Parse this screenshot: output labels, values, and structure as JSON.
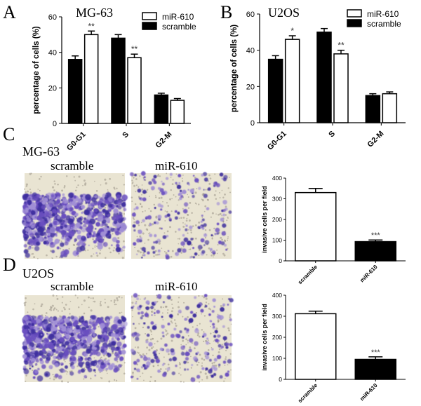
{
  "colors": {
    "filled": "#000000",
    "open": "#ffffff",
    "micro_bg": "#e9e4d2",
    "stain_dark": "#3d2d9e",
    "stain_mid": "#6a4fc0",
    "stain_light": "#a18fd6"
  },
  "panels": {
    "A": {
      "letter": "A",
      "title": "MG-63"
    },
    "B": {
      "letter": "B",
      "title": "U2OS"
    },
    "C": {
      "letter": "C",
      "title": "MG-63",
      "left_label": "scramble",
      "right_label": "miR-610"
    },
    "D": {
      "letter": "D",
      "title": "U2OS",
      "left_label": "scramble",
      "right_label": "miR-610"
    }
  },
  "chart_data": [
    {
      "id": "A",
      "type": "bar",
      "categories": [
        "G0-G1",
        "S",
        "G2-M"
      ],
      "ylabel": "percentage of cells (%)",
      "ylim": [
        0,
        60
      ],
      "yticks": [
        0,
        20,
        40,
        60
      ],
      "legend_placement": "top-right",
      "series": [
        {
          "name": "scramble",
          "fill": "black",
          "values": [
            36,
            48,
            16
          ],
          "errors": [
            2,
            2,
            1
          ]
        },
        {
          "name": "miR-610",
          "fill": "white",
          "values": [
            50,
            37,
            13
          ],
          "errors": [
            2,
            2,
            1
          ]
        }
      ],
      "annotations": [
        {
          "category": "G0-G1",
          "series": "miR-610",
          "text": "**"
        },
        {
          "category": "S",
          "series": "miR-610",
          "text": "**"
        }
      ]
    },
    {
      "id": "B",
      "type": "bar",
      "categories": [
        "G0-G1",
        "S",
        "G2-M"
      ],
      "ylabel": "percentage of cells (%)",
      "ylim": [
        0,
        60
      ],
      "yticks": [
        0,
        20,
        40,
        60
      ],
      "legend_placement": "top-right",
      "series": [
        {
          "name": "scramble",
          "fill": "black",
          "values": [
            35,
            50,
            15
          ],
          "errors": [
            2,
            2,
            1
          ]
        },
        {
          "name": "miR-610",
          "fill": "white",
          "values": [
            46,
            38,
            16
          ],
          "errors": [
            2,
            2,
            1
          ]
        }
      ],
      "annotations": [
        {
          "category": "G0-G1",
          "series": "miR-610",
          "text": "*"
        },
        {
          "category": "S",
          "series": "miR-610",
          "text": "**"
        }
      ]
    },
    {
      "id": "C",
      "type": "bar",
      "categories": [
        "scramble",
        "miR-610"
      ],
      "ylabel": "invasive cells per field",
      "ylim": [
        0,
        400
      ],
      "yticks": [
        0,
        100,
        200,
        300,
        400
      ],
      "fills": [
        "white",
        "black"
      ],
      "values": [
        330,
        93
      ],
      "errors": [
        20,
        8
      ],
      "annotations": [
        {
          "category": "miR-610",
          "text": "***"
        }
      ]
    },
    {
      "id": "D",
      "type": "bar",
      "categories": [
        "scramble",
        "miR-610"
      ],
      "ylabel": "invasive cells per field",
      "ylim": [
        0,
        400
      ],
      "yticks": [
        0,
        100,
        200,
        300,
        400
      ],
      "fills": [
        "white",
        "black"
      ],
      "values": [
        312,
        95
      ],
      "errors": [
        12,
        12
      ],
      "annotations": [
        {
          "category": "miR-610",
          "text": "***"
        }
      ]
    }
  ]
}
